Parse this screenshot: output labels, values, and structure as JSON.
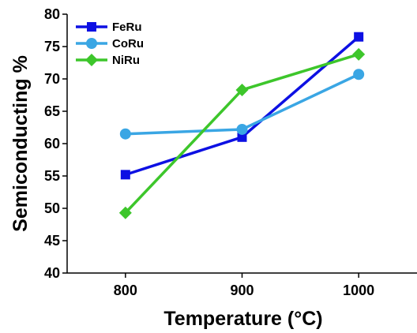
{
  "chart_data": {
    "type": "line",
    "title": "",
    "xlabel": "Temperature (°C)",
    "ylabel": "Semiconducting %",
    "x": [
      800,
      900,
      1000
    ],
    "x_tick_labels": [
      "800",
      "900",
      "1000"
    ],
    "xlim": [
      750,
      1050
    ],
    "ylim": [
      40,
      80
    ],
    "y_ticks": [
      40,
      45,
      50,
      55,
      60,
      65,
      70,
      75,
      80
    ],
    "grid": false,
    "legend_position": "top-left",
    "series": [
      {
        "name": "FeRu",
        "color": "#0d10e3",
        "marker": "square",
        "values": [
          55.2,
          61.0,
          76.5
        ]
      },
      {
        "name": "CoRu",
        "color": "#3aa6e4",
        "marker": "circle",
        "values": [
          61.5,
          62.2,
          70.7
        ]
      },
      {
        "name": "NiRu",
        "color": "#3dc62b",
        "marker": "diamond",
        "values": [
          49.3,
          68.3,
          73.8
        ]
      }
    ]
  }
}
